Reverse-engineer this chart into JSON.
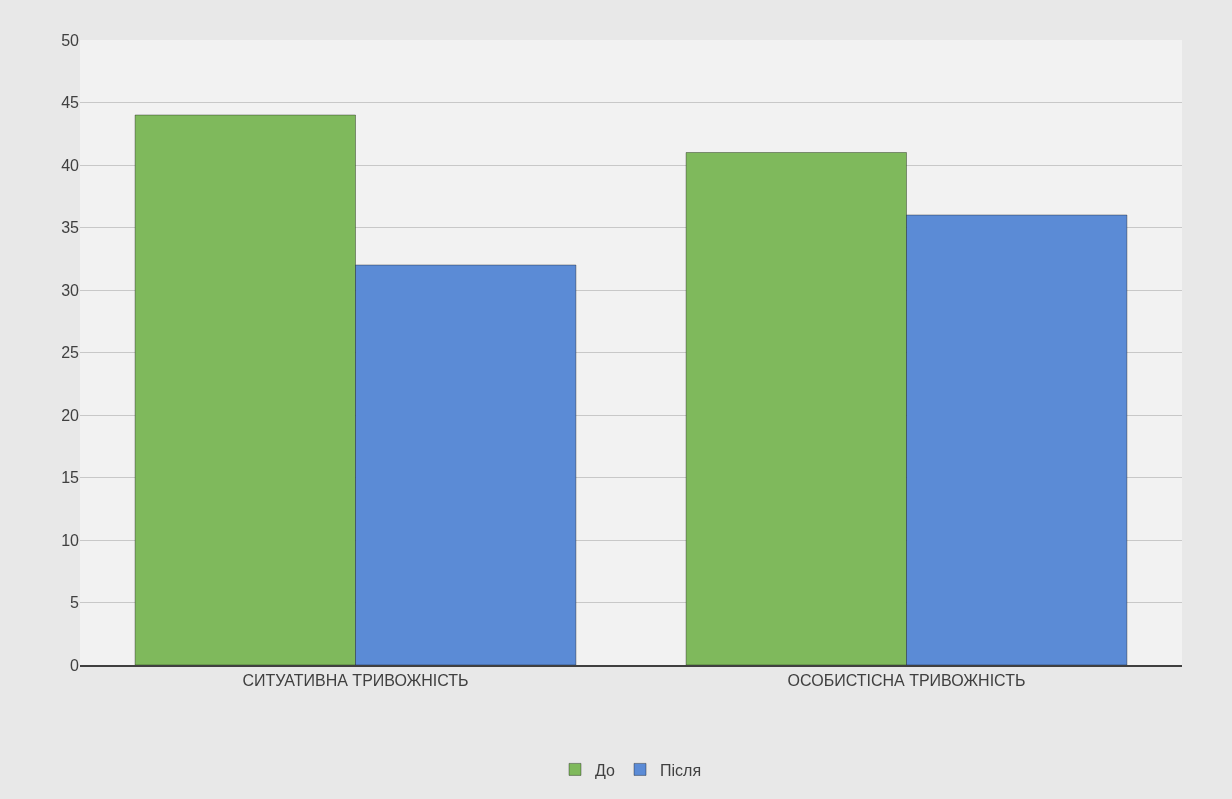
{
  "chart_data": {
    "type": "bar",
    "categories": [
      "СИТУАТИВНА ТРИВОЖНІСТЬ",
      "ОСОБИСТІСНА ТРИВОЖНІСТЬ"
    ],
    "series": [
      {
        "name": "До",
        "color": "#7fb95c",
        "values": [
          44,
          41
        ]
      },
      {
        "name": "Після",
        "color": "#5b8bd6",
        "values": [
          32,
          36
        ]
      }
    ],
    "ylim": [
      0,
      50
    ],
    "yticks": [
      0,
      5,
      10,
      15,
      20,
      25,
      30,
      35,
      40,
      45,
      50
    ],
    "grid": "y",
    "legend": "bottom"
  }
}
